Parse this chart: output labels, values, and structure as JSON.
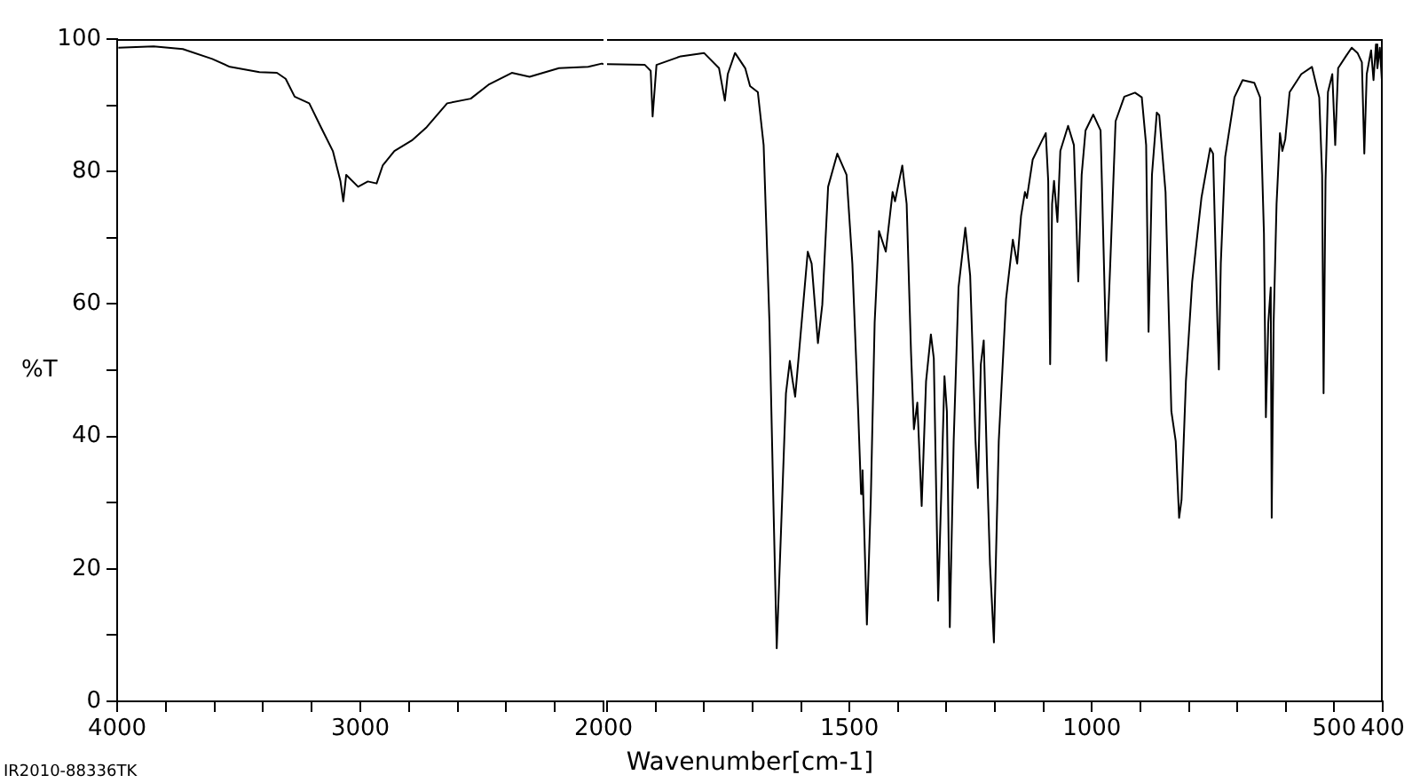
{
  "chart_data": [
    {
      "type": "line",
      "ylabel": "%T",
      "annotations": [
        "IR2010-88336TK"
      ],
      "xlim": [
        4000,
        2000
      ],
      "ylim": [
        0,
        100
      ],
      "xticks": [
        4000,
        {
          "value": 3800,
          "label": null
        },
        {
          "value": 3600,
          "label": null
        },
        {
          "value": 3400,
          "label": null
        },
        {
          "value": 3200,
          "label": null
        },
        3000,
        {
          "value": 2800,
          "label": null
        },
        {
          "value": 2600,
          "label": null
        },
        {
          "value": 2400,
          "label": null
        },
        {
          "value": 2200,
          "label": null
        },
        2000
      ],
      "yticks": [
        0,
        {
          "value": 10,
          "label": null
        },
        20,
        {
          "value": 30,
          "label": null
        },
        40,
        {
          "value": 50,
          "label": null
        },
        60,
        {
          "value": 70,
          "label": null
        },
        80,
        {
          "value": 90,
          "label": null
        },
        100
      ],
      "grid": false,
      "legend": false,
      "marker": "none",
      "line_style": "solid",
      "x": [
        3995,
        3850,
        3730,
        3609,
        3536,
        3415,
        3343,
        3307,
        3270,
        3210,
        3162,
        3113,
        3082,
        3070,
        3058,
        3009,
        2969,
        2933,
        2908,
        2860,
        2788,
        2727,
        2643,
        2546,
        2473,
        2377,
        2304,
        2183,
        2063,
        2007,
        2000
      ],
      "series": [
        {
          "color": "#000000",
          "values": [
            98.7,
            98.9,
            98.5,
            97.0,
            95.8,
            95.0,
            94.9,
            94.0,
            91.3,
            90.3,
            86.7,
            83.1,
            78.6,
            75.5,
            79.5,
            77.7,
            78.5,
            78.2,
            80.9,
            83.1,
            84.7,
            86.7,
            90.3,
            91.0,
            93.1,
            94.9,
            94.3,
            95.6,
            95.8,
            96.3,
            96.2
          ]
        }
      ]
    },
    {
      "type": "line",
      "xlabel": "Wavenumber[cm-1]",
      "xlim": [
        2000,
        400
      ],
      "ylim": [
        0,
        100
      ],
      "tick_labels": "x",
      "xticks": [
        {
          "value": 2000,
          "label": null
        },
        {
          "value": 1900,
          "label": null
        },
        {
          "value": 1800,
          "label": null
        },
        {
          "value": 1700,
          "label": null
        },
        {
          "value": 1600,
          "label": null
        },
        1500,
        {
          "value": 1400,
          "label": null
        },
        {
          "value": 1300,
          "label": null
        },
        {
          "value": 1200,
          "label": null
        },
        {
          "value": 1100,
          "label": null
        },
        1000,
        {
          "value": 900,
          "label": null
        },
        {
          "value": 800,
          "label": null
        },
        {
          "value": 700,
          "label": null
        },
        {
          "value": 600,
          "label": null
        },
        500,
        400
      ],
      "grid": false,
      "legend": false,
      "marker": "none",
      "line_style": "solid",
      "x": [
        2000,
        1922,
        1910,
        1906,
        1898,
        1848,
        1800,
        1769,
        1757,
        1751,
        1736,
        1715,
        1705,
        1689,
        1677,
        1665,
        1657,
        1650,
        1641,
        1631,
        1623,
        1617,
        1612,
        1605,
        1586,
        1578,
        1565,
        1556,
        1544,
        1525,
        1506,
        1494,
        1482,
        1476,
        1473,
        1464,
        1456,
        1448,
        1439,
        1425,
        1411,
        1406,
        1400,
        1391,
        1382,
        1373,
        1367,
        1360,
        1351,
        1342,
        1332,
        1326,
        1317,
        1311,
        1304,
        1299,
        1293,
        1285,
        1275,
        1261,
        1251,
        1240,
        1235,
        1229,
        1223,
        1216,
        1210,
        1202,
        1192,
        1177,
        1163,
        1154,
        1146,
        1138,
        1134,
        1122,
        1104,
        1095,
        1090,
        1086,
        1082,
        1078,
        1071,
        1065,
        1049,
        1037,
        1028,
        1021,
        1013,
        997,
        982,
        970,
        962,
        951,
        933,
        911,
        897,
        888,
        883,
        876,
        866,
        861,
        848,
        836,
        827,
        820,
        815,
        806,
        793,
        774,
        756,
        750,
        741,
        738,
        734,
        725,
        706,
        689,
        665,
        653,
        645,
        641,
        636,
        631,
        629,
        625,
        619,
        612,
        607,
        601,
        592,
        568,
        546,
        531,
        525,
        522,
        518,
        513,
        504,
        498,
        492,
        476,
        464,
        452,
        443,
        438,
        433,
        424,
        419,
        414,
        411,
        406,
        401
      ],
      "series": [
        {
          "color": "#000000",
          "values": [
            96.2,
            96.1,
            95.2,
            88.3,
            96.1,
            97.4,
            97.9,
            95.6,
            90.7,
            94.7,
            97.9,
            95.6,
            92.9,
            92.0,
            84.0,
            57.2,
            30.4,
            8.0,
            26.0,
            46.5,
            51.4,
            48.3,
            46.0,
            51.8,
            67.9,
            66.1,
            54.1,
            59.9,
            77.7,
            82.7,
            79.5,
            66.1,
            43.8,
            31.3,
            34.9,
            11.6,
            30.4,
            57.2,
            71.0,
            67.9,
            76.9,
            75.5,
            77.7,
            80.9,
            75.1,
            52.7,
            41.1,
            45.1,
            29.5,
            48.3,
            55.4,
            51.8,
            15.2,
            30.4,
            49.1,
            43.8,
            11.2,
            39.3,
            62.5,
            71.5,
            64.3,
            39.3,
            32.2,
            50.9,
            54.5,
            34.9,
            20.6,
            8.9,
            39.3,
            60.7,
            69.7,
            66.1,
            73.3,
            76.9,
            76.0,
            81.8,
            84.5,
            85.8,
            78.6,
            50.9,
            75.1,
            78.6,
            72.4,
            83.1,
            86.9,
            84.0,
            63.4,
            79.5,
            86.2,
            88.6,
            86.2,
            51.4,
            66.1,
            87.6,
            91.3,
            91.9,
            91.2,
            84.0,
            55.8,
            79.5,
            88.9,
            88.5,
            76.9,
            43.8,
            39.3,
            27.7,
            30.4,
            48.3,
            63.4,
            76.0,
            83.5,
            82.7,
            57.2,
            50.1,
            66.1,
            82.2,
            91.2,
            93.8,
            93.4,
            91.2,
            70.6,
            42.9,
            57.2,
            62.5,
            27.7,
            57.2,
            75.1,
            85.8,
            83.1,
            84.9,
            92.0,
            94.7,
            95.8,
            91.2,
            79.5,
            46.5,
            78.6,
            92.0,
            94.7,
            84.0,
            95.6,
            97.4,
            98.7,
            97.9,
            96.5,
            82.7,
            94.7,
            98.3,
            93.8,
            99.2,
            95.6,
            98.7,
            92.9
          ]
        }
      ]
    }
  ]
}
